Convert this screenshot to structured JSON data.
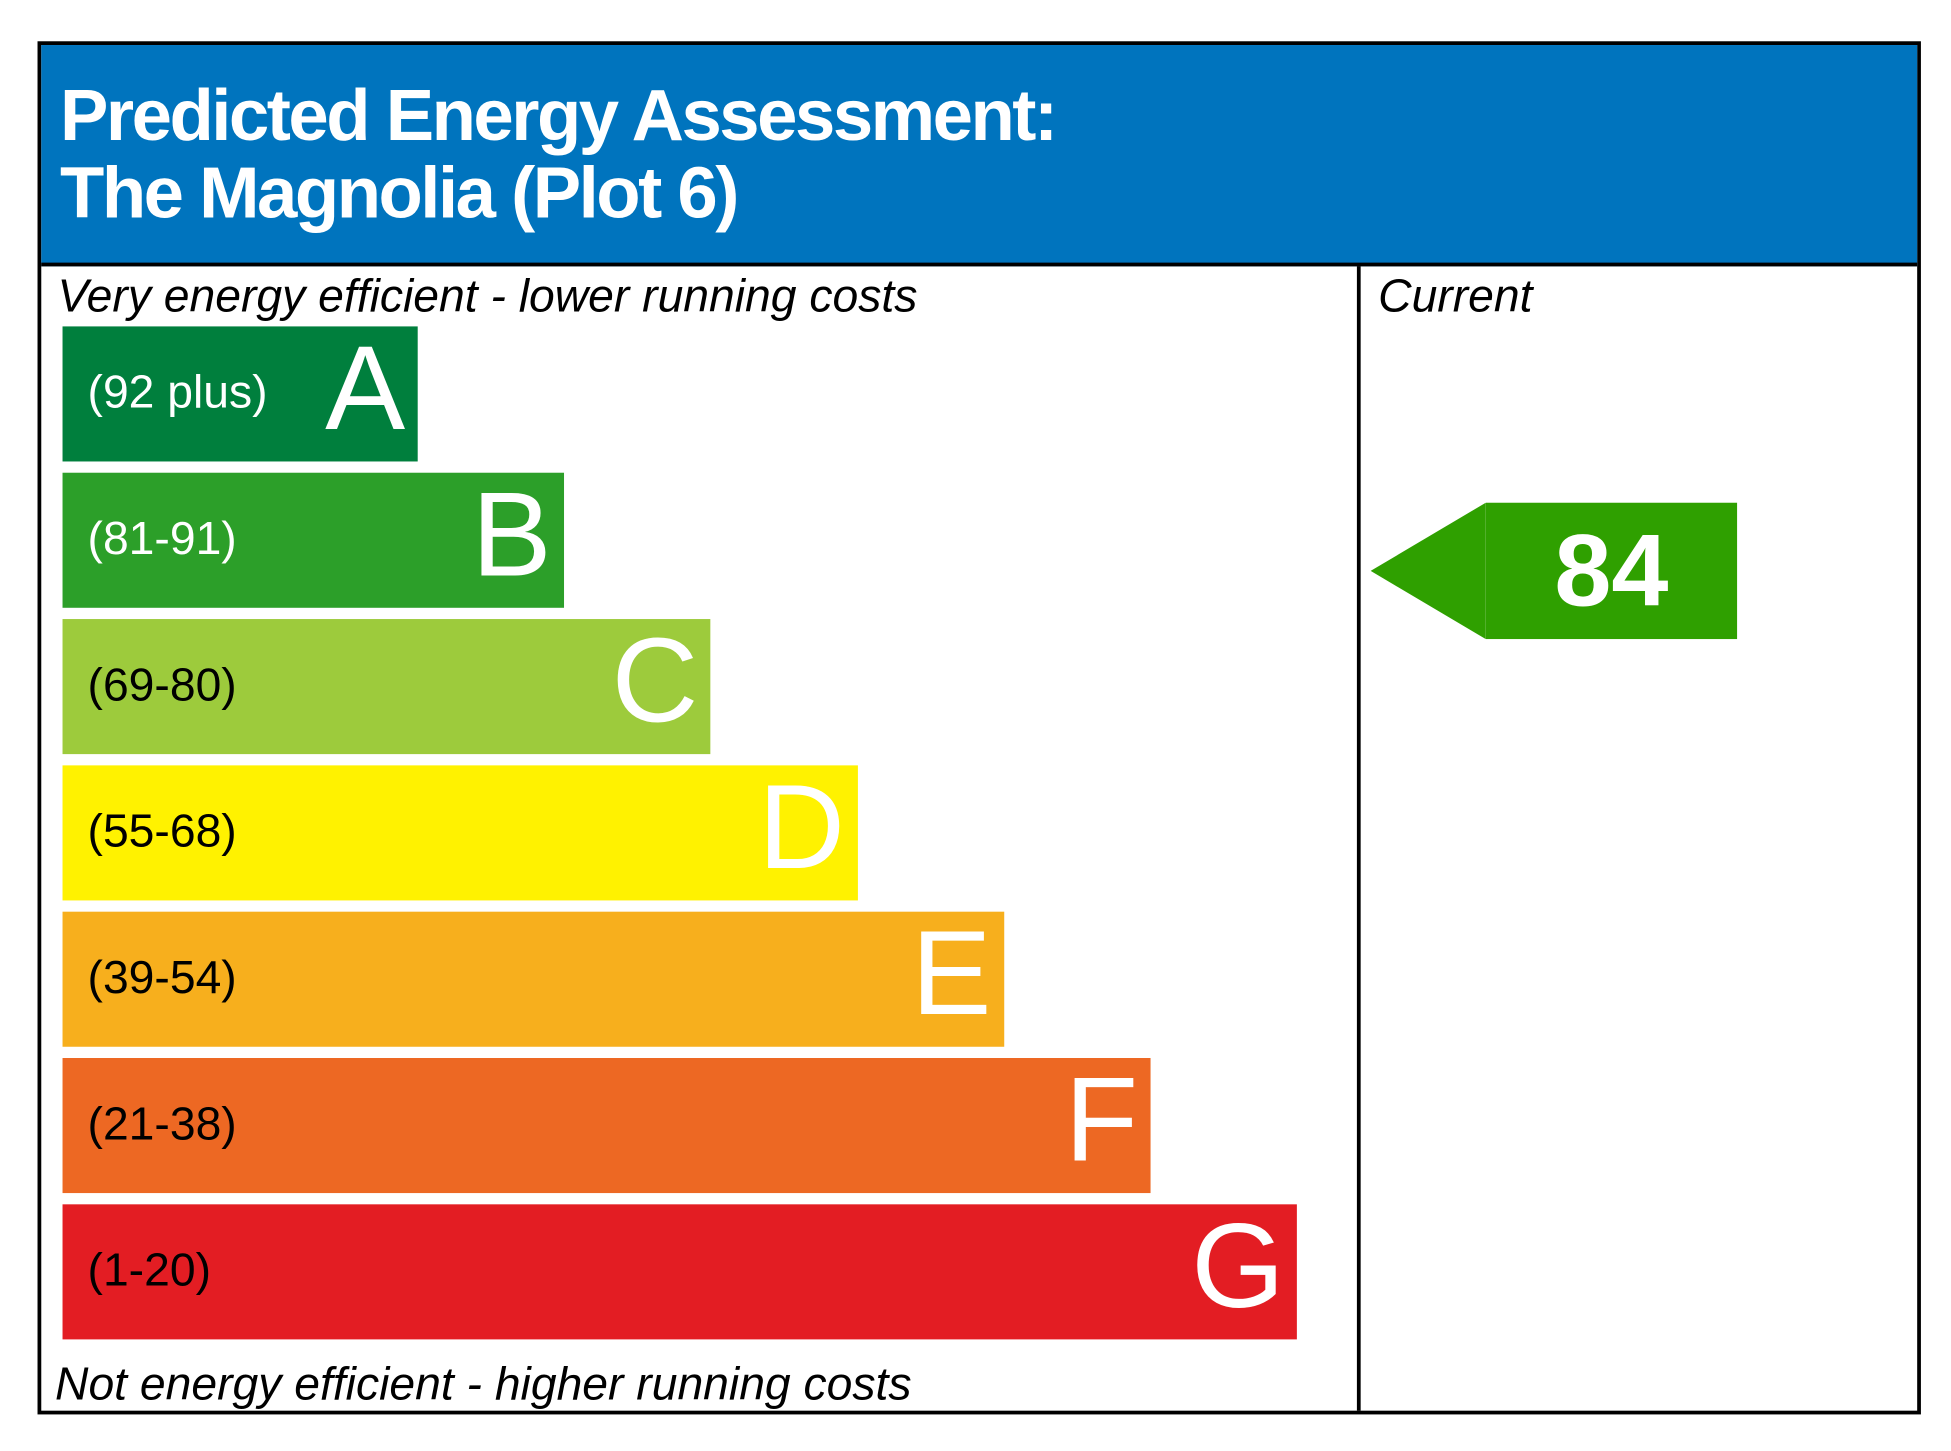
{
  "chart_data": {
    "type": "bar",
    "title_line1": "Predicted Energy Assessment:",
    "title_line2": "The Magnolia (Plot 6)",
    "top_caption": "Very energy efficient - lower running costs",
    "bottom_caption": "Not energy efficient - higher running costs",
    "column_header": "Current",
    "bands": [
      {
        "letter": "A",
        "range": "(92 plus)",
        "color": "#007F3D",
        "text_color": "#ffffff"
      },
      {
        "letter": "B",
        "range": "(81-91)",
        "color": "#2C9F29",
        "text_color": "#ffffff"
      },
      {
        "letter": "C",
        "range": "(69-80)",
        "color": "#9DCB3C",
        "text_color": "#000000"
      },
      {
        "letter": "D",
        "range": "(55-68)",
        "color": "#FFF200",
        "text_color": "#000000"
      },
      {
        "letter": "E",
        "range": "(39-54)",
        "color": "#F7AF1D",
        "text_color": "#000000"
      },
      {
        "letter": "F",
        "range": "(21-38)",
        "color": "#ED6823",
        "text_color": "#000000"
      },
      {
        "letter": "G",
        "range": "(1-20)",
        "color": "#E31D23",
        "text_color": "#000000"
      }
    ],
    "current": {
      "value": "84",
      "band": "B",
      "color": "#2FA000"
    },
    "header_color": "#0074BE"
  }
}
